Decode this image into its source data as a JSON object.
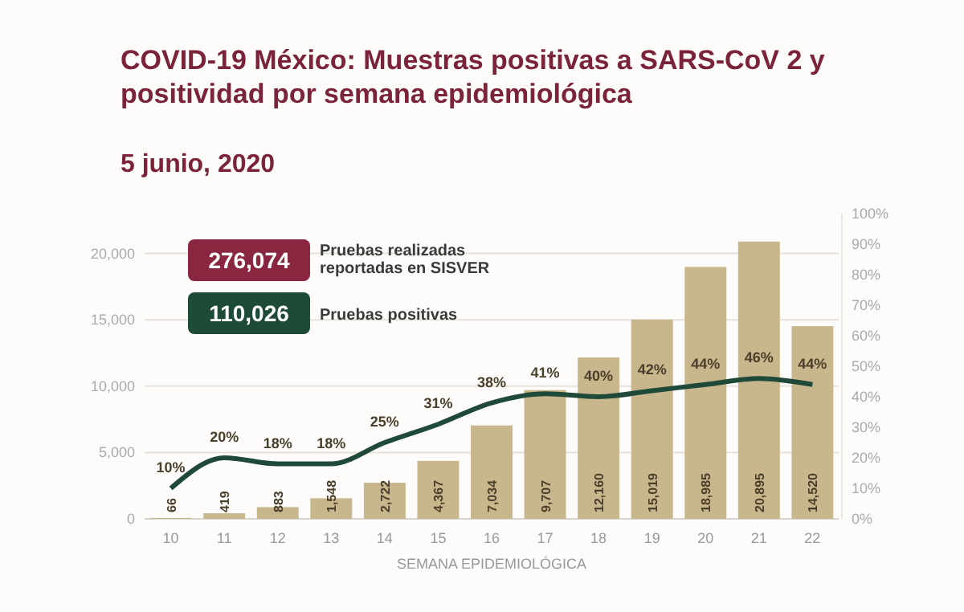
{
  "chart_data": {
    "type": "bar",
    "title": "COVID-19 México: Muestras positivas a SARS-CoV 2 y positividad por semana epidemiológica",
    "subtitle": "5 junio, 2020",
    "xlabel": "SEMANA EPIDEMIOLÓGICA",
    "categories": [
      "10",
      "11",
      "12",
      "13",
      "14",
      "15",
      "16",
      "17",
      "18",
      "19",
      "20",
      "21",
      "22"
    ],
    "series": [
      {
        "color": "#c8b68c",
        "values": [
          66,
          419,
          883,
          1548,
          2722,
          4367,
          7034,
          9707,
          12160,
          15019,
          18985,
          20895,
          14520
        ],
        "value_labels": [
          "66",
          "419",
          "883",
          "1,548",
          "2,722",
          "4,367",
          "7,034",
          "9,707",
          "12,160",
          "15,019",
          "18,985",
          "20,895",
          "14,520"
        ]
      },
      {
        "type": "line",
        "axis": "y2",
        "color": "#1f4a39",
        "values": [
          10,
          20,
          18,
          18,
          25,
          31,
          38,
          41,
          40,
          42,
          44,
          46,
          44
        ],
        "value_labels": [
          "10%",
          "20%",
          "18%",
          "18%",
          "25%",
          "31%",
          "38%",
          "41%",
          "40%",
          "42%",
          "44%",
          "46%",
          "44%"
        ]
      }
    ],
    "ylim": [
      0,
      23000
    ],
    "yticks": [
      0,
      {
        "value": 5000,
        "label": "5,000"
      },
      {
        "value": 10000,
        "label": "10,000"
      },
      {
        "value": 15000,
        "label": "15,000"
      },
      {
        "value": 20000,
        "label": "20,000"
      }
    ],
    "y2lim": [
      0,
      100
    ],
    "y2ticks": [
      {
        "value": 0,
        "label": "0%"
      },
      {
        "value": 10,
        "label": "10%"
      },
      {
        "value": 20,
        "label": "20%"
      },
      {
        "value": 30,
        "label": "30%"
      },
      {
        "value": 40,
        "label": "40%"
      },
      {
        "value": 50,
        "label": "50%"
      },
      {
        "value": 60,
        "label": "60%"
      },
      {
        "value": 70,
        "label": "70%"
      },
      {
        "value": 80,
        "label": "80%"
      },
      {
        "value": 90,
        "label": "90%"
      },
      {
        "value": 100,
        "label": "100%"
      }
    ],
    "grid": "y",
    "marker": "none",
    "line_style": "solid",
    "annotations": [
      "276,074",
      "Pruebas realizadas reportadas en SISVER",
      "110,026",
      "Pruebas positivas"
    ]
  }
}
